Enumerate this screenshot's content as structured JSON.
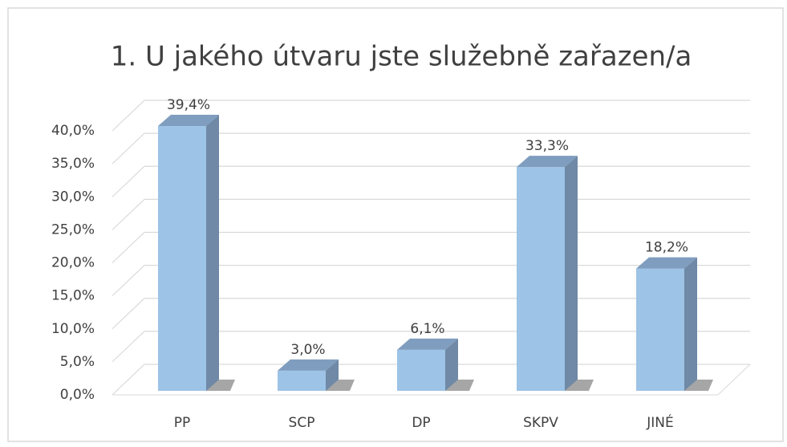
{
  "chart_data": {
    "type": "bar",
    "title": "1. U jakého útvaru jste služebně zařazen/a",
    "categories": [
      "PP",
      "SCP",
      "DP",
      "SKPV",
      "JINÉ"
    ],
    "values": [
      39.4,
      3.0,
      6.1,
      33.3,
      18.2
    ],
    "value_labels": [
      "39,4%",
      "3,0%",
      "6,1%",
      "33,3%",
      "18,2%"
    ],
    "color": "#9dc3e6",
    "ylim": [
      0,
      40
    ],
    "yticks": [
      {
        "value": 0,
        "label": "0,0%"
      },
      {
        "value": 5,
        "label": "5,0%"
      },
      {
        "value": 10,
        "label": "10,0%"
      },
      {
        "value": 15,
        "label": "15,0%"
      },
      {
        "value": 20,
        "label": "20,0%"
      },
      {
        "value": 25,
        "label": "25,0%"
      },
      {
        "value": 30,
        "label": "30,0%"
      },
      {
        "value": 35,
        "label": "35,0%"
      },
      {
        "value": 40,
        "label": "40,0%"
      }
    ],
    "grid": true
  }
}
